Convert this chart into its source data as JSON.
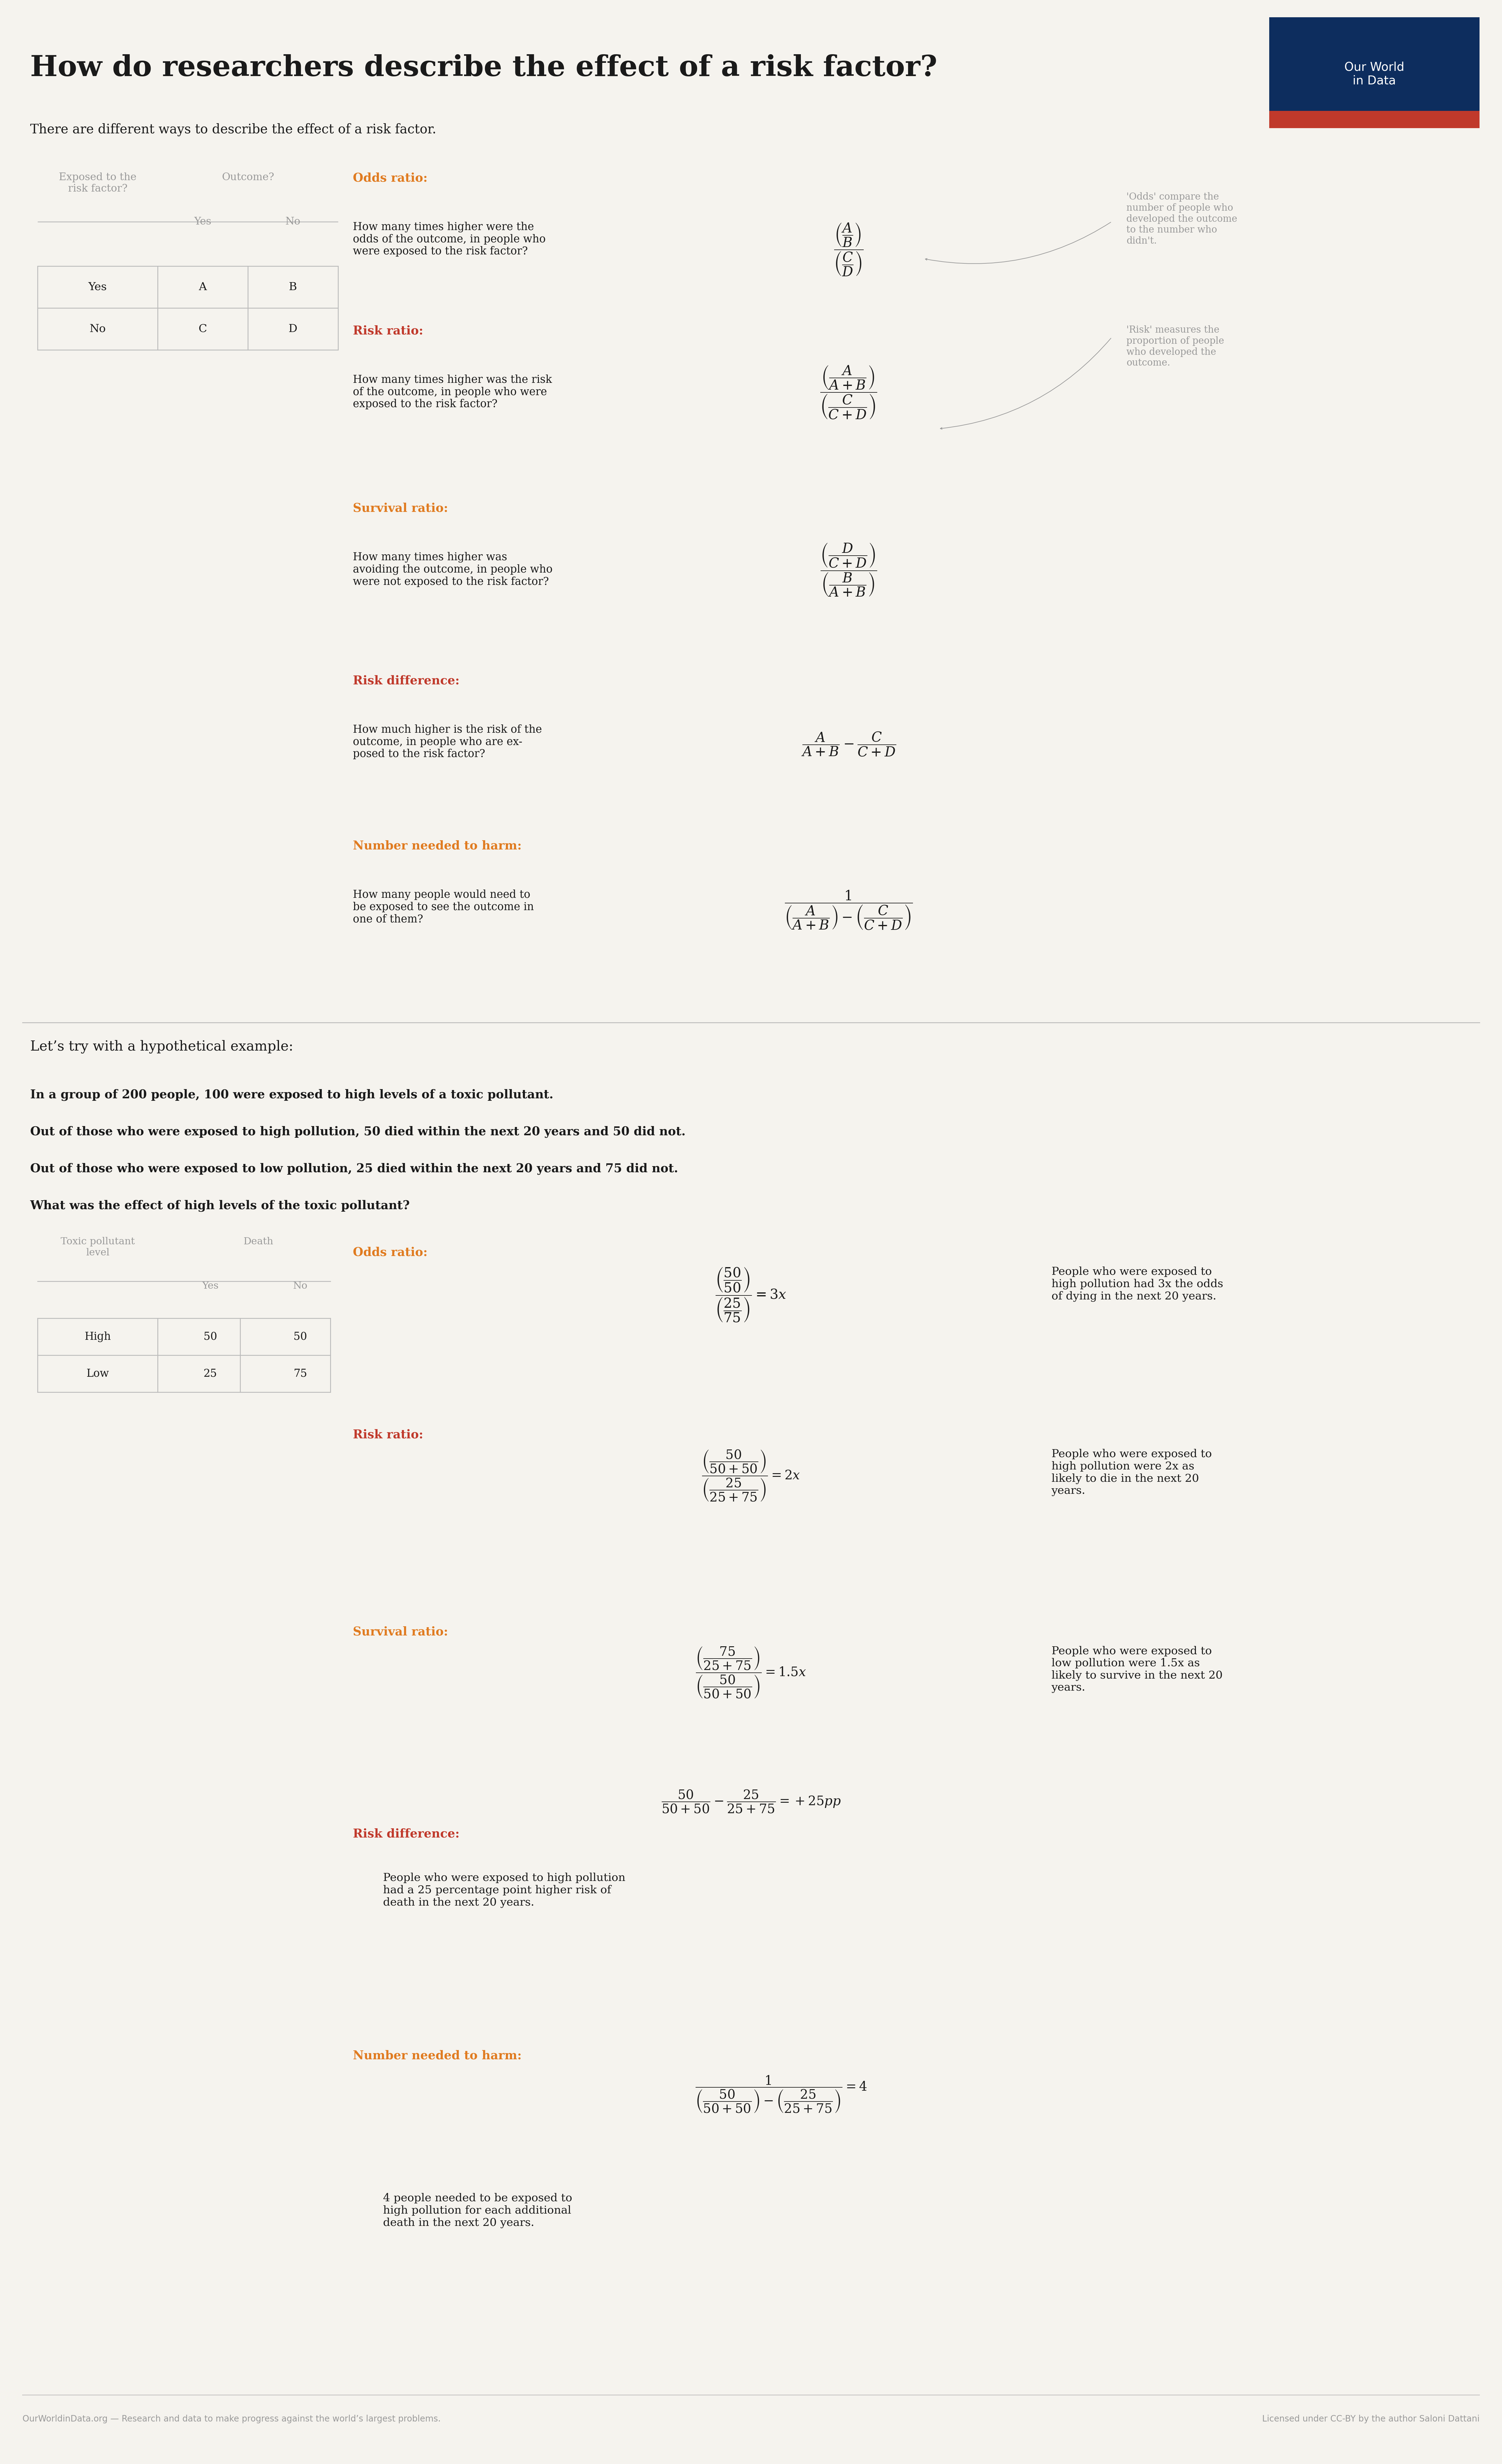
{
  "bg_color": "#f5f3ee",
  "title": "How do researchers describe the effect of a risk factor?",
  "title_color": "#1a1a1a",
  "subtitle": "There are different ways to describe the effect of a risk factor.",
  "subtitle_color": "#333333",
  "owid_box_color": "#0d2d5e",
  "owid_red": "#c0392b",
  "orange_color": "#e07b20",
  "red_color": "#c0392b",
  "text_color": "#1a1a1a",
  "gray_color": "#999999",
  "light_gray": "#bbbbbb",
  "table_line_color": "#bbbbbb",
  "footer_left": "OurWorldinData.org — Research and data to make progress against the world’s largest problems.",
  "footer_right": "Licensed under CC-BY by the author Saloni Dattani",
  "aside_odds": "'Odds' compare the\nnumber of people who\ndeveloped the outcome\nto the number who\ndidn't.",
  "aside_risk": "'Risk' measures the\nproportion of people\nwho developed the\noutcome.",
  "section2_intro": "Let’s try with a hypothetical example:",
  "section2_line1": "In a group of 200 people, 100 were exposed to high levels of a toxic pollutant.",
  "section2_line2": "Out of those who were exposed to high pollution, 50 died within the next 20 years and 50 did not.",
  "section2_line3": "Out of those who were exposed to low pollution, 25 died within the next 20 years and 75 did not.",
  "section2_line4": "What was the effect of high levels of the toxic pollutant?"
}
